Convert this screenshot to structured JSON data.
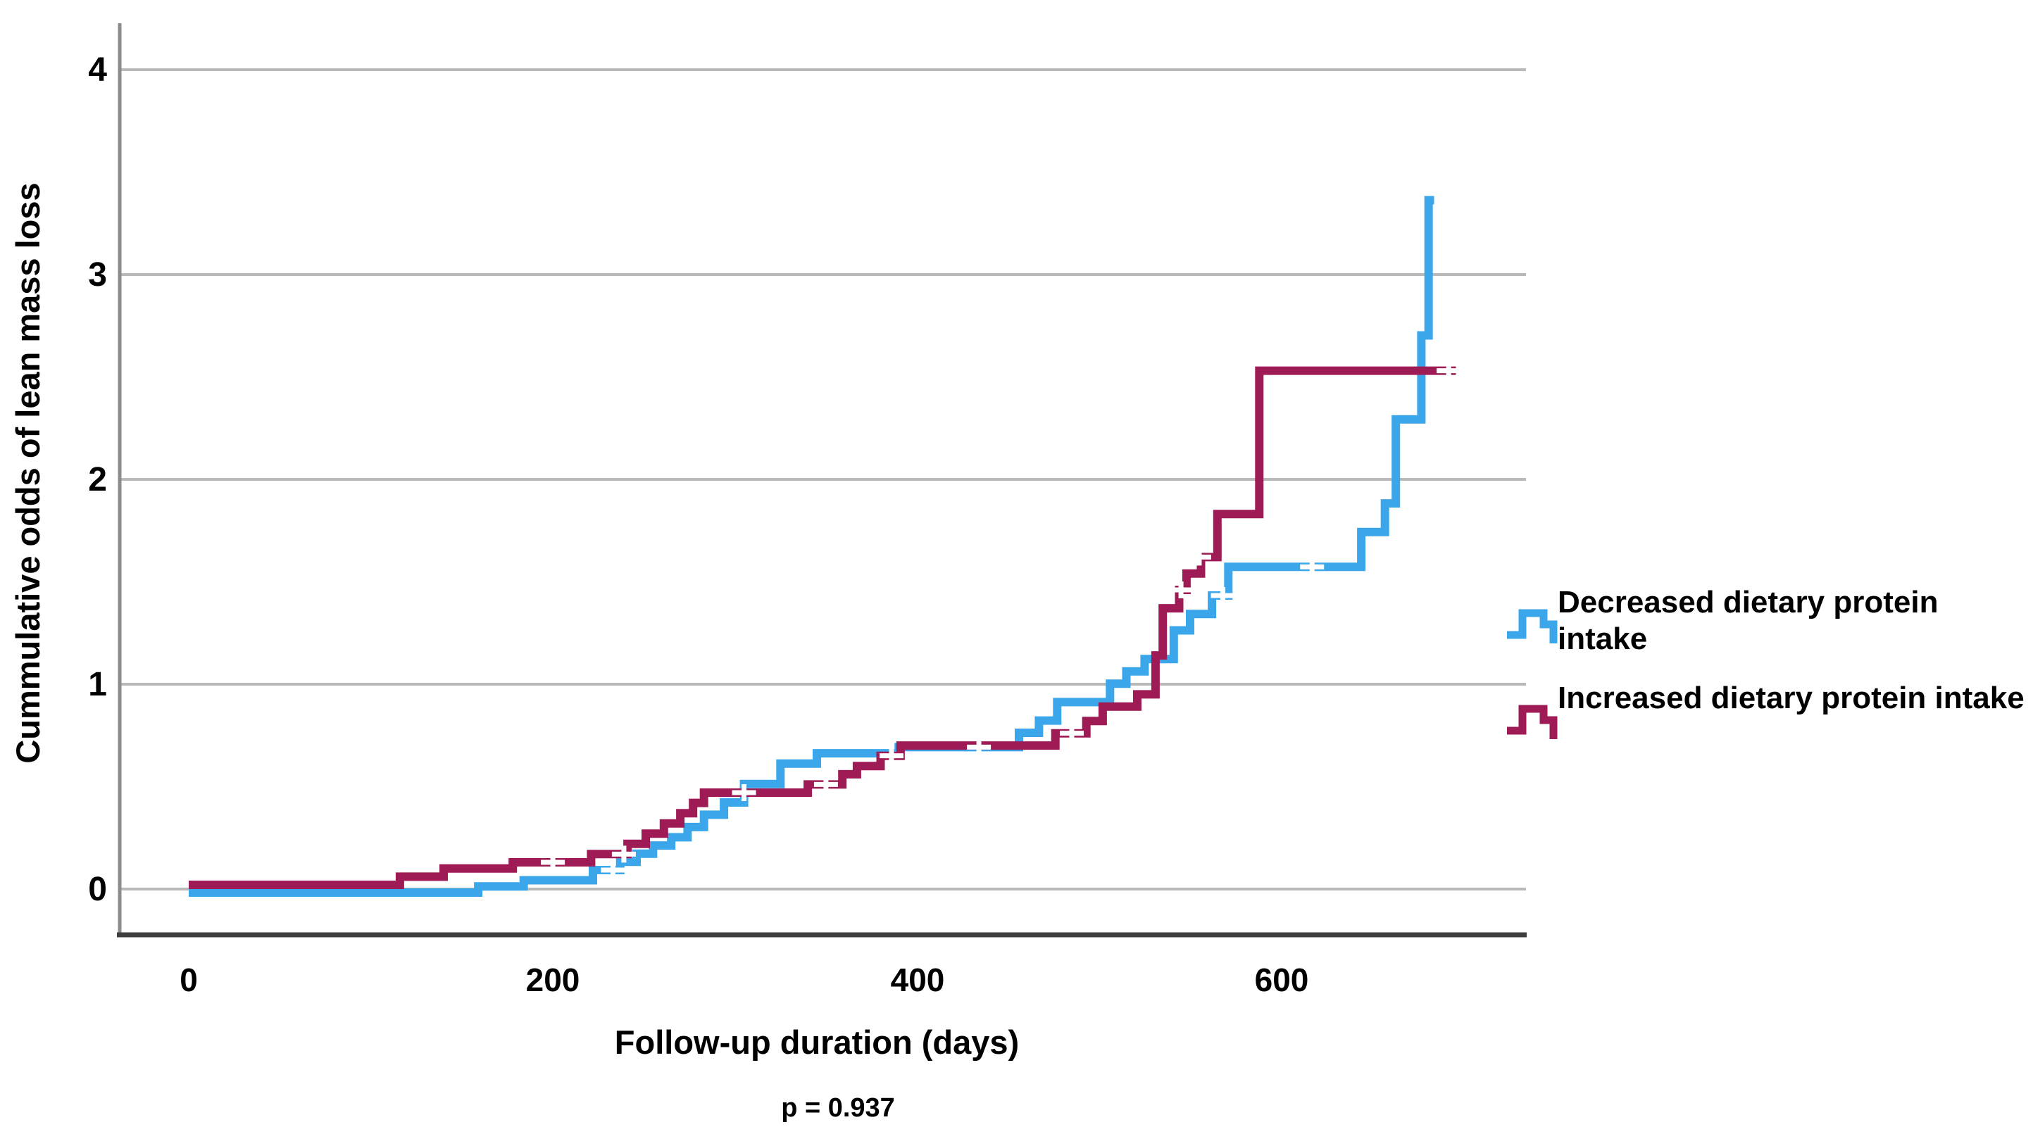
{
  "y_axis": {
    "label": "Cummulative odds of lean mass loss",
    "ticks": [
      "0",
      "1",
      "2",
      "3",
      "4"
    ]
  },
  "x_axis": {
    "label": "Follow-up duration (days)",
    "ticks": [
      "0",
      "200",
      "400",
      "600"
    ]
  },
  "annotation": {
    "p_value": "p = 0.937"
  },
  "legend": {
    "items": [
      {
        "label": "Decreased dietary protein intake",
        "color": "#3BA7EA"
      },
      {
        "label": "Increased dietary protein intake",
        "color": "#9E1B55"
      }
    ]
  },
  "colors": {
    "gridline": "#B9B9B9",
    "y_axis_line": "#8C8C8C",
    "x_axis_line": "#3F3F3F",
    "censor_mark": "#FFFFFF"
  },
  "chart_data": {
    "type": "line",
    "step": true,
    "title": "",
    "xlabel": "Follow-up duration (days)",
    "ylabel": "Cummulative odds of lean mass loss",
    "xlim": [
      0,
      734
    ],
    "ylim": [
      -0.2,
      4.27
    ],
    "xticks": [
      0,
      200,
      400,
      600
    ],
    "yticks": [
      0,
      1,
      2,
      3,
      4
    ],
    "grid": "horizontal",
    "legend_position": "right",
    "annotation": "p = 0.937",
    "series": [
      {
        "name": "Decreased dietary protein intake",
        "color": "#3BA7EA",
        "end_day": 684,
        "points": [
          [
            0,
            0
          ],
          [
            159,
            0.03
          ],
          [
            184,
            0.06
          ],
          [
            222,
            0.11
          ],
          [
            237,
            0.15
          ],
          [
            246,
            0.19
          ],
          [
            255,
            0.23
          ],
          [
            265,
            0.27
          ],
          [
            274,
            0.32
          ],
          [
            283,
            0.38
          ],
          [
            294,
            0.44
          ],
          [
            305,
            0.53
          ],
          [
            325,
            0.63
          ],
          [
            345,
            0.68
          ],
          [
            390,
            0.71
          ],
          [
            456,
            0.78
          ],
          [
            467,
            0.84
          ],
          [
            477,
            0.93
          ],
          [
            506,
            1.02
          ],
          [
            515,
            1.08
          ],
          [
            525,
            1.14
          ],
          [
            541,
            1.28
          ],
          [
            550,
            1.36
          ],
          [
            562,
            1.45
          ],
          [
            571,
            1.59
          ],
          [
            644,
            1.76
          ],
          [
            657,
            1.9
          ],
          [
            663,
            2.31
          ],
          [
            677,
            2.72
          ],
          [
            681,
            3.38
          ]
        ],
        "censors": [
          [
            233,
            0.11
          ],
          [
            434,
            0.71
          ],
          [
            568,
            1.45
          ],
          [
            617,
            1.59
          ]
        ]
      },
      {
        "name": "Increased dietary protein intake",
        "color": "#9E1B55",
        "end_day": 696,
        "points": [
          [
            0,
            0
          ],
          [
            116,
            0.04
          ],
          [
            140,
            0.08
          ],
          [
            178,
            0.11
          ],
          [
            221,
            0.15
          ],
          [
            241,
            0.2
          ],
          [
            251,
            0.25
          ],
          [
            261,
            0.3
          ],
          [
            270,
            0.35
          ],
          [
            277,
            0.4
          ],
          [
            283,
            0.45
          ],
          [
            340,
            0.49
          ],
          [
            359,
            0.54
          ],
          [
            367,
            0.58
          ],
          [
            380,
            0.63
          ],
          [
            391,
            0.68
          ],
          [
            476,
            0.74
          ],
          [
            493,
            0.8
          ],
          [
            502,
            0.87
          ],
          [
            521,
            0.93
          ],
          [
            531,
            1.12
          ],
          [
            535,
            1.35
          ],
          [
            544,
            1.44
          ],
          [
            548,
            1.52
          ],
          [
            556,
            1.6
          ],
          [
            565,
            1.81
          ],
          [
            588,
            2.51
          ]
        ],
        "censors": [
          [
            200,
            0.11
          ],
          [
            239,
            0.15
          ],
          [
            305,
            0.45
          ],
          [
            350,
            0.49
          ],
          [
            386,
            0.63
          ],
          [
            485,
            0.74
          ],
          [
            545,
            1.44
          ],
          [
            555,
            1.6
          ],
          [
            692,
            2.51
          ]
        ]
      }
    ]
  }
}
